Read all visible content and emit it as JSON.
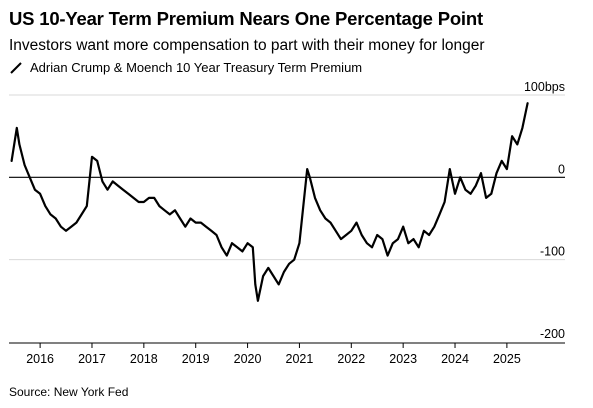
{
  "header": {
    "title": "US 10-Year Term Premium Nears One Percentage Point",
    "subtitle": "Investors want more compensation to part with their money for longer"
  },
  "legend": {
    "label": "Adrian Crump & Moench 10 Year Treasury Term Premium"
  },
  "footer": {
    "source": "Source: New York Fed"
  },
  "colors": {
    "line": "#000000",
    "zero_line": "#000000",
    "grid": "#d9d9d9",
    "axis": "#000000"
  },
  "chart_data": {
    "type": "line",
    "title": "US 10-Year Term Premium Nears One Percentage Point",
    "subtitle": "Investors want more compensation to part with their money for longer",
    "xlabel": "",
    "ylabel": "",
    "ylim": [
      -200,
      100
    ],
    "y_ticks": [
      100,
      0,
      -100,
      -200
    ],
    "y_tick_labels": [
      "100bps",
      "0",
      "-100",
      "-200"
    ],
    "y_axis_position": "right",
    "x_ticks": [
      2016,
      2017,
      2018,
      2019,
      2020,
      2021,
      2022,
      2023,
      2024,
      2025
    ],
    "x_tick_labels": [
      "2016",
      "2017",
      "2018",
      "2019",
      "2020",
      "2021",
      "2022",
      "2023",
      "2024",
      "2025"
    ],
    "xlim": [
      2015.4,
      2025.6
    ],
    "grid": true,
    "legend_position": "top-left",
    "series": [
      {
        "name": "Adrian Crump & Moench 10 Year Treasury Term Premium",
        "x": [
          2015.45,
          2015.55,
          2015.6,
          2015.7,
          2015.8,
          2015.9,
          2016.0,
          2016.1,
          2016.2,
          2016.3,
          2016.4,
          2016.5,
          2016.6,
          2016.7,
          2016.8,
          2016.9,
          2016.95,
          2017.0,
          2017.1,
          2017.2,
          2017.3,
          2017.4,
          2017.5,
          2017.6,
          2017.7,
          2017.8,
          2017.9,
          2018.0,
          2018.1,
          2018.2,
          2018.3,
          2018.4,
          2018.5,
          2018.6,
          2018.7,
          2018.8,
          2018.9,
          2019.0,
          2019.1,
          2019.2,
          2019.3,
          2019.4,
          2019.5,
          2019.6,
          2019.7,
          2019.8,
          2019.9,
          2020.0,
          2020.1,
          2020.15,
          2020.2,
          2020.3,
          2020.4,
          2020.5,
          2020.6,
          2020.7,
          2020.8,
          2020.9,
          2021.0,
          2021.1,
          2021.15,
          2021.2,
          2021.3,
          2021.4,
          2021.5,
          2021.6,
          2021.7,
          2021.8,
          2021.9,
          2022.0,
          2022.1,
          2022.2,
          2022.3,
          2022.4,
          2022.5,
          2022.6,
          2022.7,
          2022.8,
          2022.9,
          2023.0,
          2023.1,
          2023.2,
          2023.3,
          2023.4,
          2023.5,
          2023.6,
          2023.7,
          2023.8,
          2023.9,
          2024.0,
          2024.1,
          2024.2,
          2024.3,
          2024.4,
          2024.5,
          2024.6,
          2024.7,
          2024.8,
          2024.9,
          2025.0,
          2025.1,
          2025.2,
          2025.3,
          2025.4
        ],
        "y": [
          20,
          60,
          40,
          15,
          0,
          -15,
          -20,
          -35,
          -45,
          -50,
          -60,
          -65,
          -60,
          -55,
          -45,
          -35,
          -5,
          25,
          20,
          -5,
          -15,
          -5,
          -10,
          -15,
          -20,
          -25,
          -30,
          -30,
          -25,
          -25,
          -35,
          -40,
          -45,
          -40,
          -50,
          -60,
          -50,
          -55,
          -55,
          -60,
          -65,
          -70,
          -85,
          -95,
          -80,
          -85,
          -90,
          -80,
          -85,
          -130,
          -150,
          -120,
          -110,
          -120,
          -130,
          -115,
          -105,
          -100,
          -80,
          -20,
          10,
          0,
          -25,
          -40,
          -50,
          -55,
          -65,
          -75,
          -70,
          -65,
          -55,
          -70,
          -80,
          -85,
          -70,
          -75,
          -95,
          -80,
          -75,
          -60,
          -80,
          -75,
          -85,
          -65,
          -70,
          -60,
          -45,
          -30,
          10,
          -20,
          0,
          -15,
          -20,
          -10,
          5,
          -25,
          -20,
          5,
          20,
          10,
          50,
          40,
          60,
          90
        ]
      }
    ]
  }
}
